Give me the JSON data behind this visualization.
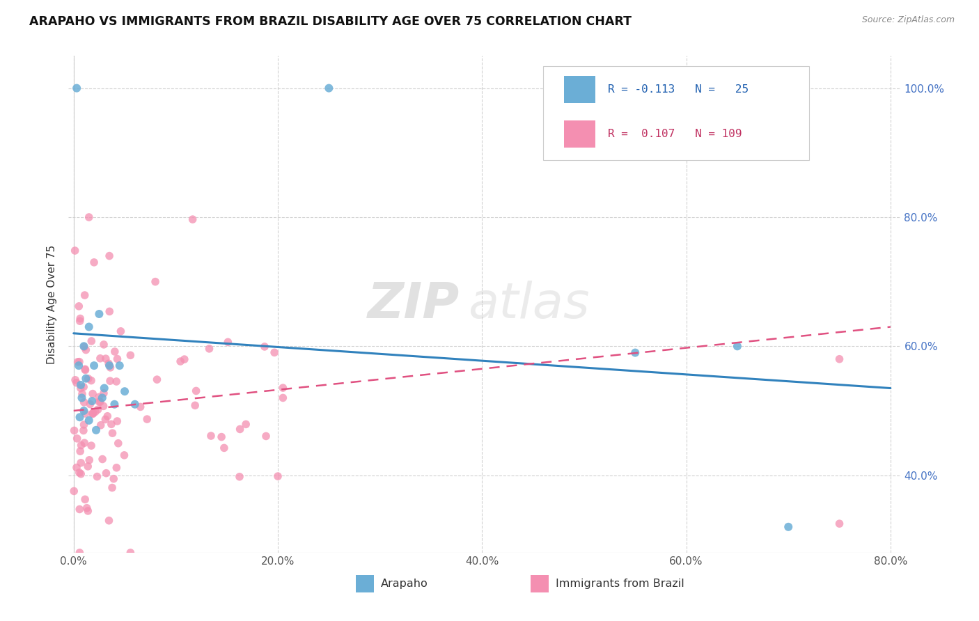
{
  "title": "ARAPAHO VS IMMIGRANTS FROM BRAZIL DISABILITY AGE OVER 75 CORRELATION CHART",
  "source": "Source: ZipAtlas.com",
  "arapaho_color": "#6baed6",
  "brazil_color": "#f48fb1",
  "arapaho_trend_color": "#3182bd",
  "brazil_trend_color": "#e05080",
  "arapaho_R": -0.113,
  "arapaho_N": 25,
  "brazil_R": 0.107,
  "brazil_N": 109,
  "watermark": "ZIPatlas",
  "ylabel_label": "Disability Age Over 75",
  "legend_arapaho": "Arapaho",
  "legend_brazil": "Immigrants from Brazil",
  "xmin": 0.0,
  "xmax": 80.0,
  "ymin": 28.0,
  "ymax": 105.0,
  "yticks": [
    40.0,
    60.0,
    80.0,
    100.0
  ],
  "xticks": [
    0.0,
    20.0,
    40.0,
    60.0,
    80.0
  ],
  "arap_trend_x0": 0.0,
  "arap_trend_y0": 62.0,
  "arap_trend_x1": 80.0,
  "arap_trend_y1": 53.5,
  "bz_trend_x0": 0.0,
  "bz_trend_y0": 50.0,
  "bz_trend_x1": 80.0,
  "bz_trend_y1": 63.0
}
